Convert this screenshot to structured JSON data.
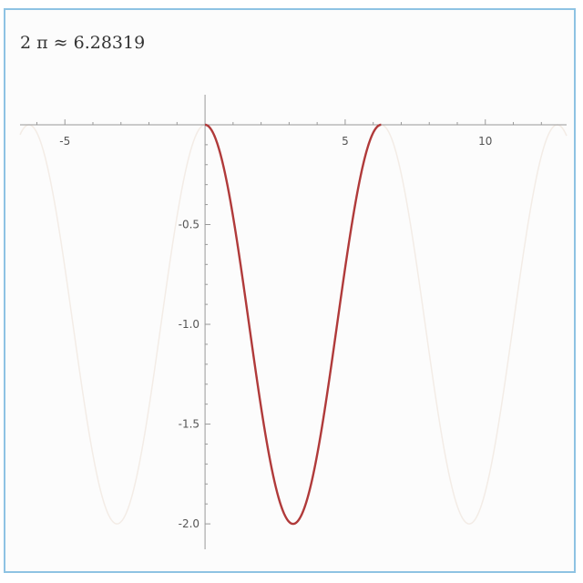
{
  "title": "2 π ≈ 6.28319",
  "colors": {
    "curve": "#b03a3a",
    "ghost": "#f3ece6",
    "axis": "#999999",
    "frame": "#8ec3e3"
  },
  "chart_data": {
    "type": "line",
    "title": "2 π ≈ 6.28319",
    "xlabel": "",
    "ylabel": "",
    "xlim": [
      -6.6,
      12.9
    ],
    "ylim": [
      -2.1,
      0.05
    ],
    "x_ticks": [
      -5,
      5,
      10
    ],
    "x_tick_labels": [
      "-5",
      "5",
      "10"
    ],
    "y_ticks": [
      -0.5,
      -1.0,
      -1.5,
      -2.0
    ],
    "y_tick_labels": [
      "-0.5",
      "-1.0",
      "-1.5",
      "-2.0"
    ],
    "grid": false,
    "series": [
      {
        "domain": [
          0,
          6.28319
        ],
        "x": [
          0,
          0.785,
          1.571,
          2.356,
          3.1416,
          3.927,
          4.712,
          5.498,
          6.28319
        ],
        "y": [
          0,
          -0.293,
          -1.0,
          -1.707,
          -2.0,
          -1.707,
          -1.0,
          -0.293,
          0
        ],
        "style": "highlighted"
      },
      {
        "domain": [
          -6.6,
          12.9
        ],
        "x": [
          -6.283,
          -4.712,
          -3.1416,
          -1.571,
          0,
          1.571,
          3.1416,
          4.712,
          6.283,
          7.854,
          9.425,
          10.996,
          12.566
        ],
        "y": [
          0,
          -1.0,
          -2.0,
          -1.0,
          0,
          -1.0,
          -2.0,
          -1.0,
          0,
          -1.0,
          -2.0,
          -1.0,
          0
        ],
        "style": "faint"
      }
    ]
  }
}
